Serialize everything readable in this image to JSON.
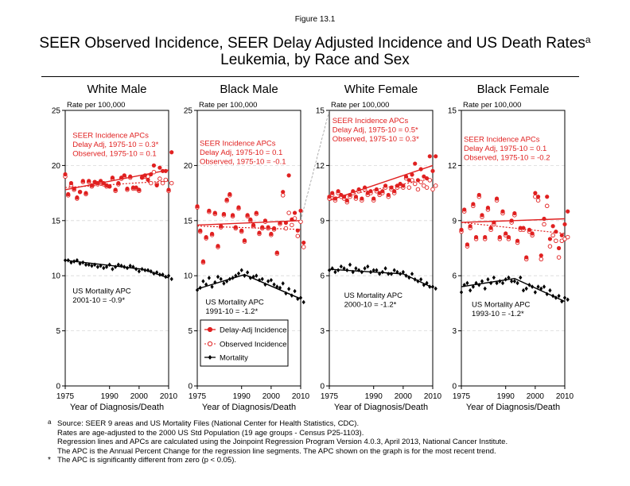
{
  "figure_label": "Figure 13.1",
  "title_line1": "SEER Observed Incidence, SEER Delay Adjusted Incidence and US Death Rates",
  "title_sup": "a",
  "title_line2": "Leukemia, by Race and Sex",
  "legend": {
    "delay": "Delay-Adj Incidence",
    "observed": "Observed Incidence",
    "mortality": "Mortality"
  },
  "colors": {
    "incidence": "#e02020",
    "mortality": "#000000",
    "gridline": "#d8d8d8"
  },
  "footnotes": {
    "mark_a": "a",
    "line1": "Source: SEER 9 areas and US Mortality Files (National Center for Health Statistics, CDC).",
    "line2": "Rates are age-adjusted to the 2000 US Std Population (19 age groups - Census P25-1103).",
    "line3": "Regression lines and APCs are calculated using the Joinpoint Regression Program Version 4.0.3, April 2013, National Cancer Institute.",
    "line4": "The APC is the Annual Percent Change for the regression line segments. The APC shown on the graph is for the most recent trend.",
    "mark_star": "*",
    "line5": "The APC is significantly different from zero (p < 0.05)."
  },
  "chart_data": [
    {
      "type": "scatter",
      "title": "White Male",
      "ylabel": "Rate per 100,000",
      "xlabel": "Year of Diagnosis/Death",
      "ylim": [
        0,
        25
      ],
      "yticks": [
        "0",
        "5",
        "10",
        "15",
        "20",
        "25"
      ],
      "xlim": [
        1975,
        2010
      ],
      "xticks": [
        "1975",
        "1990",
        "2000",
        "2010"
      ],
      "incidence_text": [
        "SEER Incidence APCs",
        "Delay Adj, 1975-10 = 0.3*",
        "Observed, 1975-10 = 0.1"
      ],
      "mortality_text": [
        "US Mortality APC",
        "2001-10 = -0.9*"
      ],
      "delay_adj": [
        19.2,
        17.4,
        18.4,
        17.9,
        17.1,
        17.6,
        18.6,
        17.5,
        18.6,
        18.2,
        18.5,
        18.4,
        18.6,
        18.4,
        18.2,
        18.1,
        18.9,
        17.8,
        18.4,
        18.9,
        19.1,
        17.9,
        19.0,
        18.0,
        18.0,
        17.8,
        18.9,
        19.1,
        18.7,
        19.2,
        20.0,
        18.2,
        19.8,
        19.5,
        19.5,
        17.8,
        21.2
      ],
      "observed": [
        19.0,
        17.3,
        18.2,
        17.8,
        17.0,
        17.6,
        18.5,
        17.4,
        18.5,
        18.1,
        18.5,
        18.3,
        18.5,
        18.3,
        18.1,
        18.1,
        18.8,
        17.7,
        18.3,
        18.8,
        19.0,
        17.8,
        18.9,
        17.9,
        17.9,
        17.7,
        18.9,
        19.0,
        19.0,
        18.4,
        19.4,
        18.3,
        18.8,
        18.4,
        18.7,
        17.7,
        18.4
      ],
      "mortality": [
        11.4,
        11.4,
        11.2,
        11.3,
        11.4,
        11.1,
        11.2,
        11.0,
        11.0,
        10.9,
        11.0,
        10.8,
        10.9,
        10.7,
        10.8,
        11.0,
        10.6,
        10.8,
        11.0,
        10.9,
        10.8,
        10.7,
        10.9,
        10.8,
        10.6,
        10.4,
        10.6,
        10.5,
        10.5,
        10.4,
        10.2,
        10.3,
        10.1,
        10.1,
        9.9,
        10.0,
        9.7
      ],
      "delay_fit": [
        [
          1975,
          17.8
        ],
        [
          2010,
          19.6
        ]
      ],
      "observed_fit": [
        [
          1975,
          18.0
        ],
        [
          2010,
          18.6
        ]
      ],
      "mortality_fit": [
        [
          1975,
          11.4
        ],
        [
          2001,
          10.6
        ],
        [
          2010,
          9.8
        ]
      ],
      "incidence_text_yr": 1977.5,
      "incidence_text_y": 22.5,
      "mortality_text_yr": 1977.5,
      "mortality_text_y": 8.4
    },
    {
      "type": "scatter",
      "title": "Black Male",
      "ylabel": "Rate per 100,000",
      "xlabel": "Year of Diagnosis/Death",
      "ylim": [
        0,
        25
      ],
      "yticks": [
        "0",
        "5",
        "10",
        "15",
        "20",
        "25"
      ],
      "xlim": [
        1975,
        2010
      ],
      "xticks": [
        "1975",
        "1990",
        "2000",
        "2010"
      ],
      "incidence_text": [
        "SEER Incidence APCs",
        "Delay Adj, 1975-10 = 0.1",
        "Observed, 1975-10 = -0.1"
      ],
      "mortality_text": [
        "US Mortality APC",
        "1991-10 = -1.2*"
      ],
      "delay_adj": [
        16.3,
        14.1,
        11.3,
        13.5,
        15.9,
        13.8,
        15.7,
        12.7,
        14.5,
        15.6,
        16.9,
        17.4,
        15.5,
        14.4,
        16.2,
        14.1,
        13.2,
        15.5,
        15.1,
        14.6,
        15.7,
        13.9,
        14.4,
        15.0,
        14.4,
        13.8,
        14.3,
        12.1,
        14.8,
        17.6,
        14.8,
        19.1,
        15.1,
        15.7,
        14.1,
        15.9,
        13.0
      ],
      "observed": [
        16.2,
        14.0,
        11.2,
        13.4,
        15.8,
        13.7,
        15.6,
        12.6,
        14.4,
        15.5,
        16.8,
        17.3,
        15.4,
        14.3,
        16.1,
        14.0,
        13.1,
        15.4,
        15.0,
        14.5,
        15.6,
        13.8,
        14.3,
        14.9,
        14.3,
        13.7,
        14.2,
        12.0,
        14.7,
        17.3,
        14.3,
        15.7,
        14.6,
        15.2,
        13.6,
        14.9,
        12.6
      ],
      "mortality": [
        8.7,
        8.9,
        9.5,
        9.2,
        9.8,
        9.0,
        9.4,
        9.9,
        9.7,
        9.3,
        9.5,
        9.7,
        9.8,
        10.0,
        10.2,
        10.5,
        10.0,
        10.3,
        9.8,
        9.9,
        10.0,
        9.6,
        9.7,
        9.2,
        9.5,
        9.6,
        9.2,
        9.0,
        8.9,
        9.3,
        8.4,
        8.8,
        8.2,
        8.6,
        7.9,
        8.0,
        7.6
      ],
      "delay_fit": [
        [
          1975,
          14.6
        ],
        [
          2010,
          15.0
        ]
      ],
      "observed_fit": [
        [
          1975,
          14.5
        ],
        [
          2010,
          14.2
        ]
      ],
      "mortality_fit": [
        [
          1975,
          8.8
        ],
        [
          1991,
          10.1
        ],
        [
          2010,
          7.9
        ]
      ],
      "incidence_text_yr": 1975.8,
      "incidence_text_y": 21.8,
      "mortality_text_yr": 1977.8,
      "mortality_text_y": 7.4
    },
    {
      "type": "scatter",
      "title": "White Female",
      "ylabel": "Rate per 100,000",
      "xlabel": "Year of Diagnosis/Death",
      "ylim": [
        0,
        15
      ],
      "yticks": [
        "0",
        "3",
        "6",
        "9",
        "12",
        "15"
      ],
      "xlim": [
        1975,
        2010
      ],
      "xticks": [
        "1975",
        "1990",
        "2000",
        "2010"
      ],
      "incidence_text": [
        "SEER Incidence APCs",
        "Delay Adj, 1975-10 = 0.5*",
        "Observed, 1975-10 = 0.3*"
      ],
      "mortality_text": [
        "US Mortality APC",
        "2000-10 = -1.2*"
      ],
      "delay_adj": [
        10.3,
        10.5,
        10.2,
        10.6,
        10.4,
        10.3,
        10.1,
        10.4,
        10.6,
        10.3,
        10.7,
        10.2,
        10.8,
        10.5,
        10.6,
        10.2,
        10.7,
        10.5,
        10.6,
        10.9,
        10.4,
        10.8,
        10.6,
        10.9,
        11.0,
        10.9,
        11.4,
        11.2,
        11.5,
        12.1,
        11.2,
        11.8,
        11.4,
        11.3,
        12.5,
        11.7,
        12.5
      ],
      "observed": [
        10.2,
        10.4,
        10.1,
        10.5,
        10.3,
        10.2,
        10.0,
        10.3,
        10.5,
        10.2,
        10.6,
        10.1,
        10.7,
        10.4,
        10.5,
        10.1,
        10.6,
        10.4,
        10.5,
        10.8,
        10.3,
        10.7,
        10.5,
        10.8,
        10.9,
        10.8,
        11.3,
        10.8,
        11.2,
        11.0,
        10.7,
        11.1,
        10.9,
        10.8,
        11.2,
        10.7,
        10.9
      ],
      "mortality": [
        6.3,
        6.4,
        6.2,
        6.3,
        6.5,
        6.4,
        6.3,
        6.6,
        6.2,
        6.4,
        6.3,
        6.2,
        6.4,
        6.5,
        6.2,
        6.3,
        6.3,
        6.1,
        6.2,
        6.4,
        6.1,
        6.1,
        6.3,
        6.2,
        6.1,
        6.2,
        6.0,
        5.9,
        6.1,
        5.8,
        5.7,
        5.8,
        5.5,
        5.6,
        5.4,
        5.4,
        5.3
      ],
      "delay_fit": [
        [
          1975,
          10.1
        ],
        [
          2010,
          12.0
        ]
      ],
      "observed_fit": [
        [
          1975,
          10.2
        ],
        [
          2010,
          11.3
        ]
      ],
      "mortality_fit": [
        [
          1975,
          6.35
        ],
        [
          2000,
          6.1
        ],
        [
          2010,
          5.35
        ]
      ],
      "incidence_text_yr": 1976.0,
      "incidence_text_y": 14.3,
      "mortality_text_yr": 1980.0,
      "mortality_text_y": 4.8
    },
    {
      "type": "scatter",
      "title": "Black Female",
      "ylabel": "Rate per 100,000",
      "xlabel": "Year of Diagnosis/Death",
      "ylim": [
        0,
        15
      ],
      "yticks": [
        "0",
        "3",
        "6",
        "9",
        "12",
        "15"
      ],
      "xlim": [
        1975,
        2010
      ],
      "xticks": [
        "1975",
        "1990",
        "2000",
        "2010"
      ],
      "incidence_text": [
        "SEER Incidence APCs",
        "Delay Adj, 1975-10 = 0.1",
        "Observed, 1975-10 = -0.2"
      ],
      "mortality_text": [
        "US Mortality APC",
        "1993-10 = -1.2*"
      ],
      "delay_adj": [
        8.5,
        9.6,
        7.7,
        8.7,
        9.9,
        8.1,
        10.4,
        9.3,
        8.1,
        9.7,
        8.6,
        8.9,
        10.2,
        8.1,
        9.5,
        8.3,
        8.1,
        9.0,
        9.4,
        7.9,
        8.6,
        8.6,
        7.0,
        8.5,
        8.3,
        10.5,
        10.3,
        7.1,
        9.1,
        10.3,
        8.0,
        8.7,
        8.4,
        7.5,
        8.2,
        8.8,
        9.5
      ],
      "observed": [
        8.4,
        9.5,
        7.6,
        8.6,
        9.8,
        8.0,
        10.3,
        9.2,
        8.0,
        9.6,
        8.5,
        8.8,
        10.1,
        8.0,
        9.4,
        8.2,
        8.0,
        8.9,
        9.3,
        7.8,
        8.5,
        8.5,
        6.9,
        8.4,
        8.2,
        10.3,
        10.1,
        6.9,
        8.8,
        9.8,
        7.6,
        8.2,
        7.9,
        7.0,
        7.9,
        8.0,
        8.1
      ],
      "mortality": [
        5.1,
        5.5,
        5.6,
        5.2,
        5.4,
        5.6,
        5.5,
        5.7,
        5.3,
        5.8,
        5.6,
        5.9,
        5.6,
        5.7,
        5.6,
        5.8,
        5.9,
        5.7,
        5.7,
        5.6,
        5.9,
        5.2,
        5.3,
        5.5,
        5.4,
        5.1,
        5.4,
        5.3,
        5.4,
        5.0,
        5.2,
        4.9,
        4.8,
        4.9,
        4.6,
        4.8,
        4.7
      ],
      "delay_fit": [
        [
          1975,
          8.9
        ],
        [
          2010,
          9.1
        ]
      ],
      "observed_fit": [
        [
          1975,
          8.9
        ],
        [
          2010,
          8.3
        ]
      ],
      "mortality_fit": [
        [
          1975,
          5.4
        ],
        [
          1993,
          5.85
        ],
        [
          2010,
          4.6
        ]
      ],
      "incidence_text_yr": 1975.8,
      "incidence_text_y": 13.3,
      "mortality_text_yr": 1978.5,
      "mortality_text_y": 4.3
    }
  ]
}
